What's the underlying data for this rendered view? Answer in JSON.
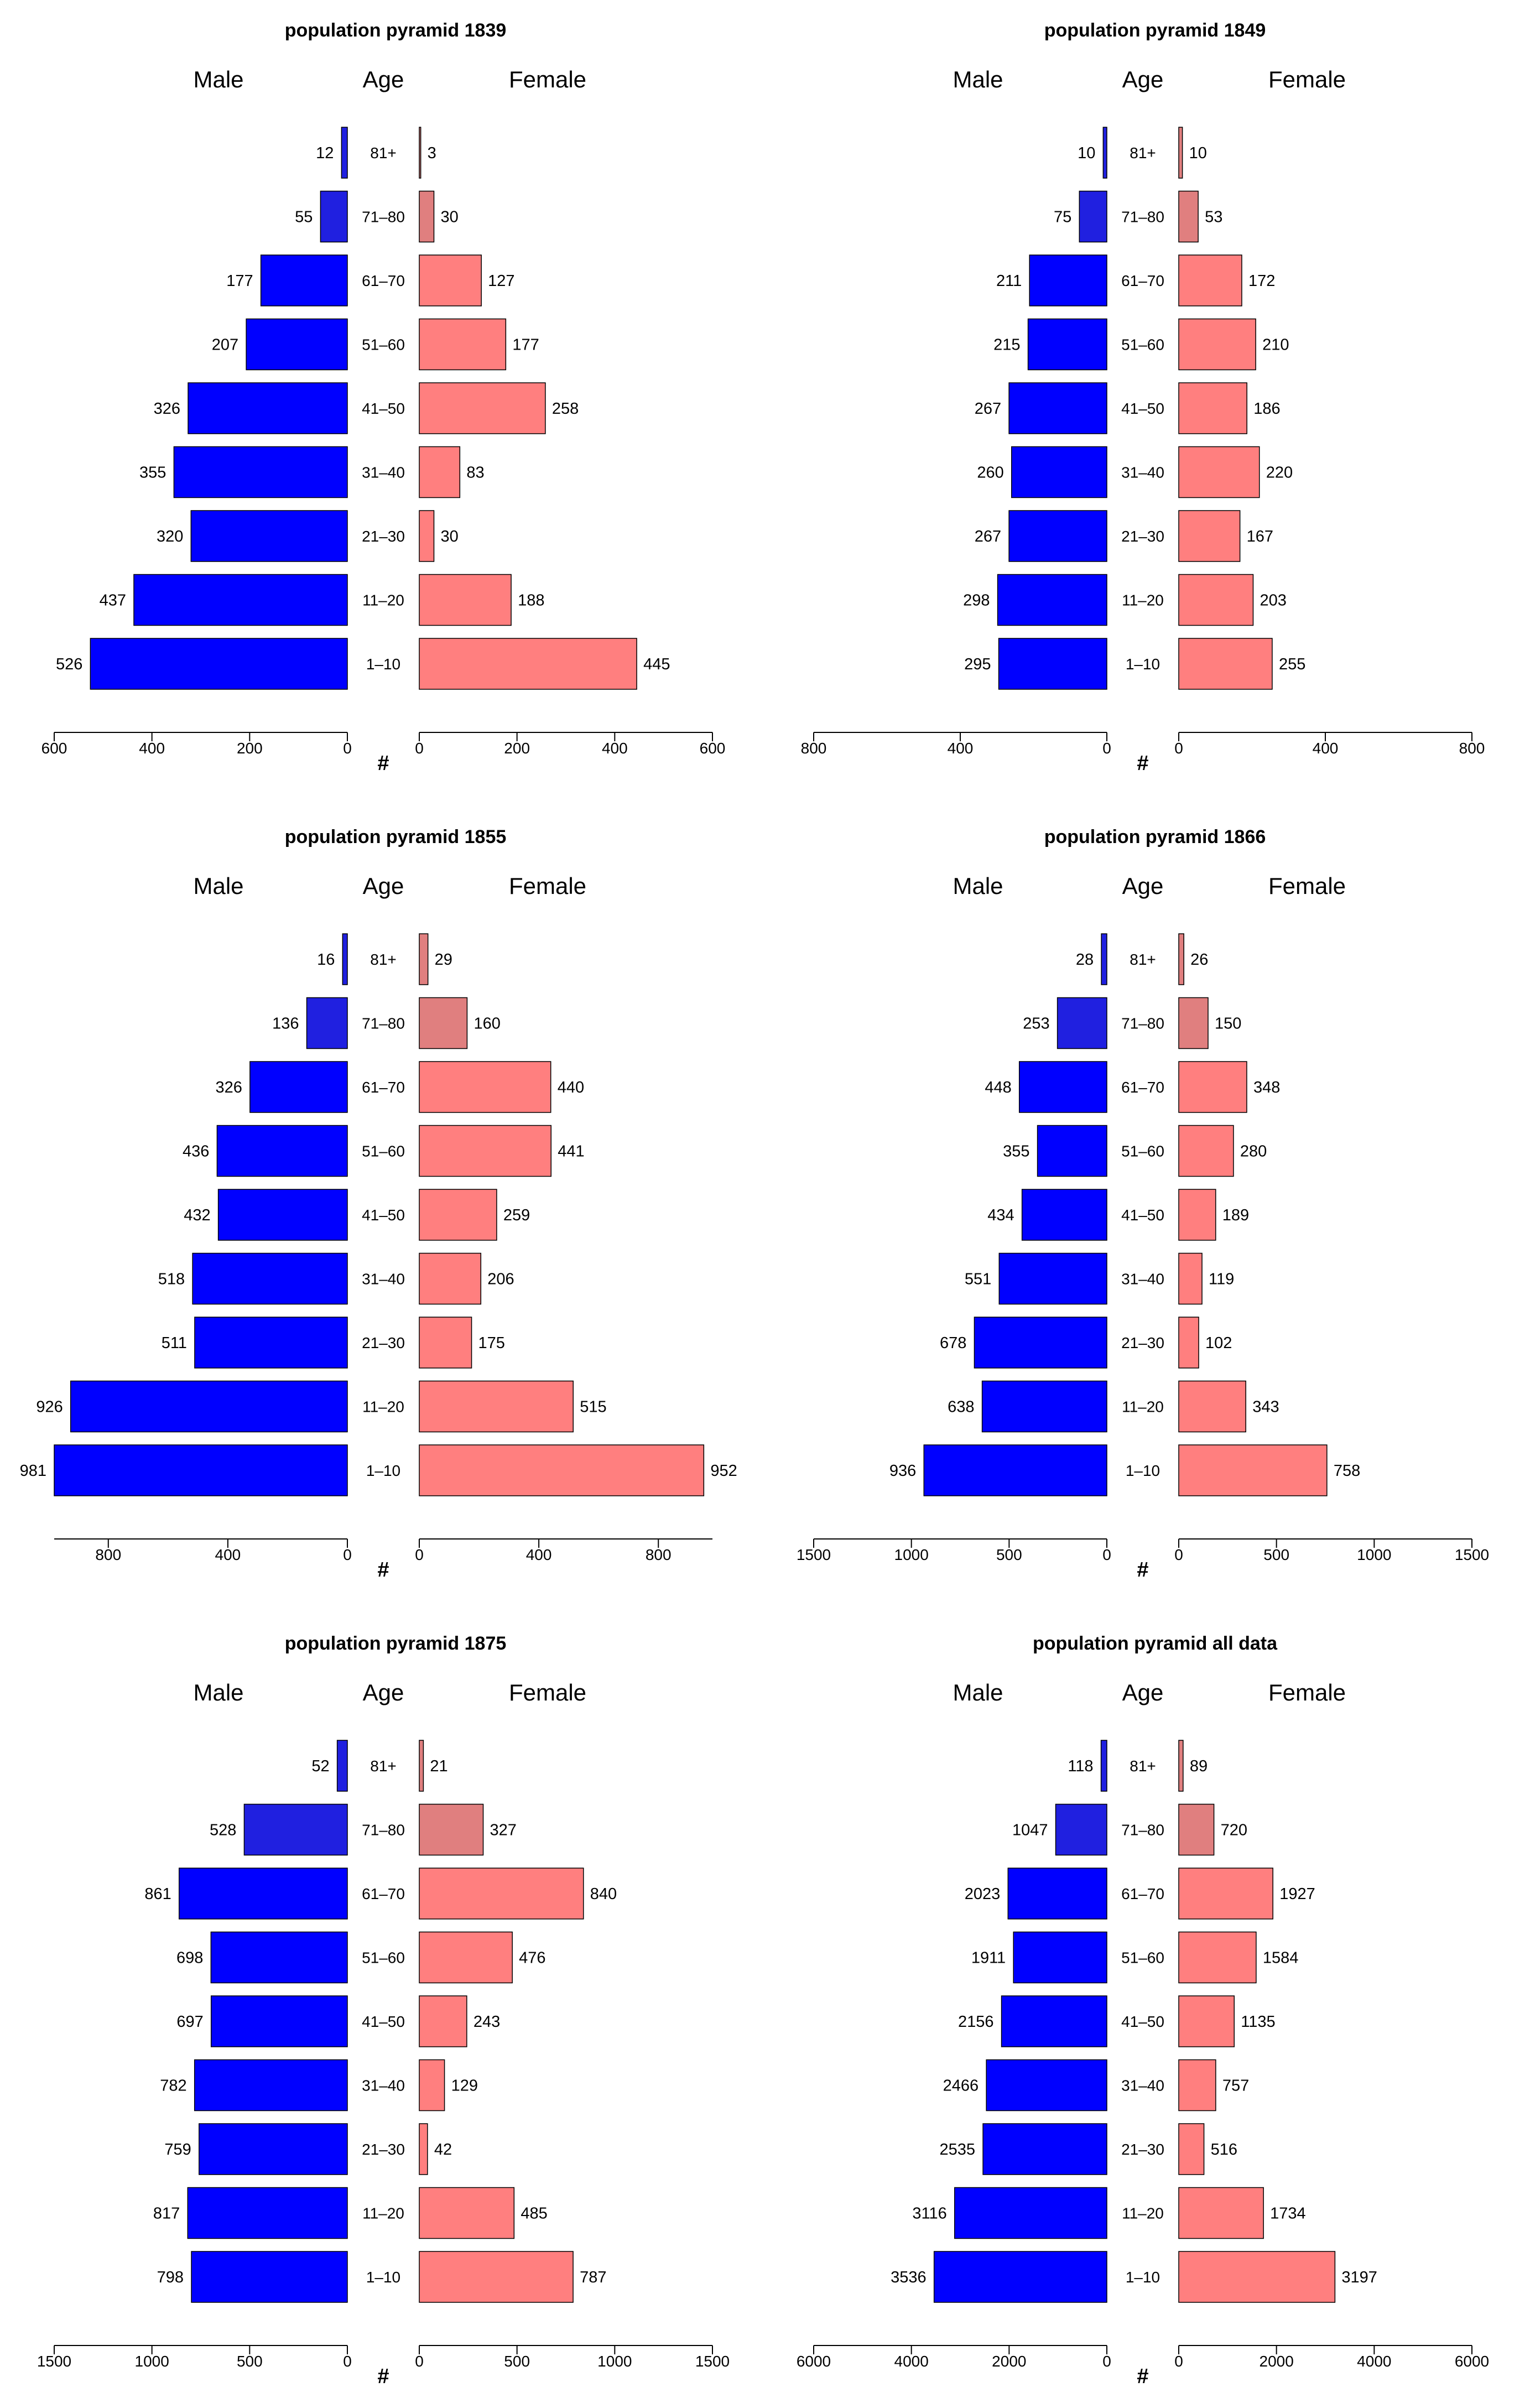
{
  "colors": {
    "male": "#0000ff",
    "female": "#ff7f7f",
    "male_old": "#2020e0",
    "female_old": "#e07f7f",
    "axis": "#000000"
  },
  "chart_data": [
    {
      "type": "bar",
      "title": "population pyramid 1839",
      "male_label": "Male",
      "age_label": "Age",
      "female_label": "Female",
      "xlabel": "#",
      "categories": [
        "81+",
        "71–80",
        "61–70",
        "51–60",
        "41–50",
        "31–40",
        "21–30",
        "11–20",
        "1–10"
      ],
      "series": [
        {
          "name": "Male",
          "values": [
            12,
            55,
            177,
            207,
            326,
            355,
            320,
            437,
            526
          ]
        },
        {
          "name": "Female",
          "values": [
            3,
            30,
            127,
            177,
            258,
            83,
            30,
            188,
            445
          ]
        }
      ],
      "xlim": [
        0,
        600
      ],
      "ticks": [
        0,
        200,
        400,
        600
      ]
    },
    {
      "type": "bar",
      "title": "population pyramid 1849",
      "male_label": "Male",
      "age_label": "Age",
      "female_label": "Female",
      "xlabel": "#",
      "categories": [
        "81+",
        "71–80",
        "61–70",
        "51–60",
        "41–50",
        "31–40",
        "21–30",
        "11–20",
        "1–10"
      ],
      "series": [
        {
          "name": "Male",
          "values": [
            10,
            75,
            211,
            215,
            267,
            260,
            267,
            298,
            295
          ]
        },
        {
          "name": "Female",
          "values": [
            10,
            53,
            172,
            210,
            186,
            220,
            167,
            203,
            255
          ]
        }
      ],
      "xlim": [
        0,
        800
      ],
      "ticks": [
        0,
        400,
        800
      ]
    },
    {
      "type": "bar",
      "title": "population pyramid 1855",
      "male_label": "Male",
      "age_label": "Age",
      "female_label": "Female",
      "xlabel": "#",
      "categories": [
        "81+",
        "71–80",
        "61–70",
        "51–60",
        "41–50",
        "31–40",
        "21–30",
        "11–20",
        "1–10"
      ],
      "series": [
        {
          "name": "Male",
          "values": [
            16,
            136,
            326,
            436,
            432,
            518,
            511,
            926,
            981
          ]
        },
        {
          "name": "Female",
          "values": [
            29,
            160,
            440,
            441,
            259,
            206,
            175,
            515,
            952
          ]
        }
      ],
      "xlim": [
        0,
        981
      ],
      "ticks": [
        0,
        400,
        800
      ]
    },
    {
      "type": "bar",
      "title": "population pyramid 1866",
      "male_label": "Male",
      "age_label": "Age",
      "female_label": "Female",
      "xlabel": "#",
      "categories": [
        "81+",
        "71–80",
        "61–70",
        "51–60",
        "41–50",
        "31–40",
        "21–30",
        "11–20",
        "1–10"
      ],
      "series": [
        {
          "name": "Male",
          "values": [
            28,
            253,
            448,
            355,
            434,
            551,
            678,
            638,
            936
          ]
        },
        {
          "name": "Female",
          "values": [
            26,
            150,
            348,
            280,
            189,
            119,
            102,
            343,
            758
          ]
        }
      ],
      "xlim": [
        0,
        1500
      ],
      "ticks": [
        0,
        500,
        1000,
        1500
      ]
    },
    {
      "type": "bar",
      "title": "population pyramid 1875",
      "male_label": "Male",
      "age_label": "Age",
      "female_label": "Female",
      "xlabel": "#",
      "categories": [
        "81+",
        "71–80",
        "61–70",
        "51–60",
        "41–50",
        "31–40",
        "21–30",
        "11–20",
        "1–10"
      ],
      "series": [
        {
          "name": "Male",
          "values": [
            52,
            528,
            861,
            698,
            697,
            782,
            759,
            817,
            798
          ]
        },
        {
          "name": "Female",
          "values": [
            21,
            327,
            840,
            476,
            243,
            129,
            42,
            485,
            787
          ]
        }
      ],
      "xlim": [
        0,
        1500
      ],
      "ticks": [
        0,
        500,
        1000,
        1500
      ]
    },
    {
      "type": "bar",
      "title": "population pyramid all data",
      "male_label": "Male",
      "age_label": "Age",
      "female_label": "Female",
      "xlabel": "#",
      "categories": [
        "81+",
        "71–80",
        "61–70",
        "51–60",
        "41–50",
        "31–40",
        "21–30",
        "11–20",
        "1–10"
      ],
      "series": [
        {
          "name": "Male",
          "values": [
            118,
            1047,
            2023,
            1911,
            2156,
            2466,
            2535,
            3116,
            3536
          ]
        },
        {
          "name": "Female",
          "values": [
            89,
            720,
            1927,
            1584,
            1135,
            757,
            516,
            1734,
            3197
          ]
        }
      ],
      "xlim": [
        0,
        6000
      ],
      "ticks": [
        0,
        2000,
        4000,
        6000
      ]
    }
  ]
}
